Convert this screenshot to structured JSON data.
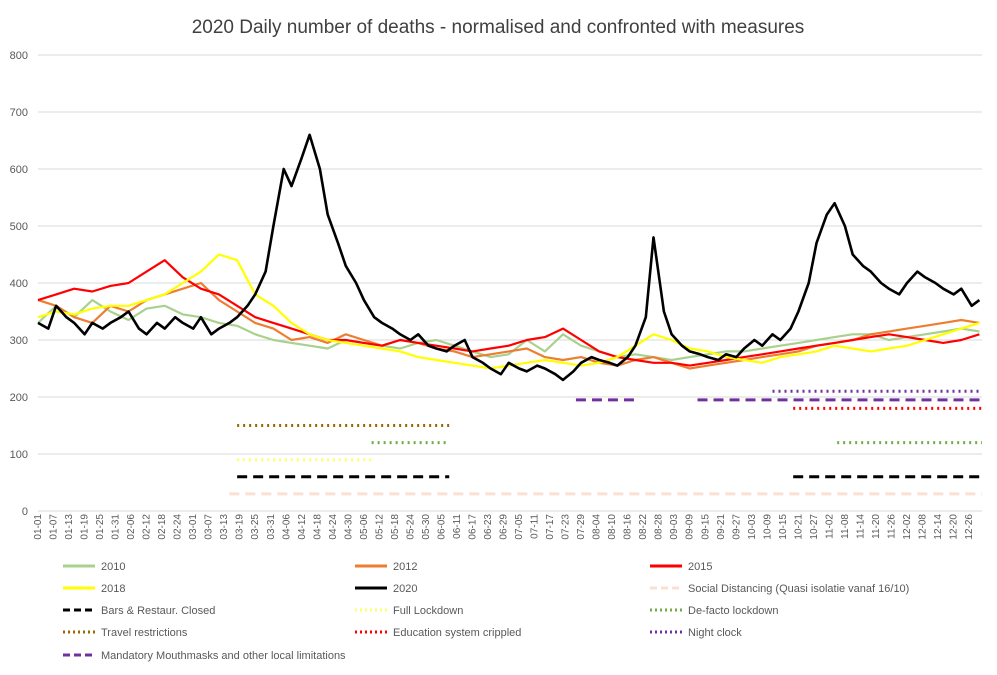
{
  "chart_data": {
    "type": "line",
    "title": "2020 Daily number of deaths - normalised and confronted with measures",
    "xlabel": "",
    "ylabel": "",
    "ylim": [
      0,
      800
    ],
    "yticks": [
      "0",
      "100",
      "200",
      "300",
      "400",
      "500",
      "600",
      "700",
      "800"
    ],
    "grid": "horizontal",
    "legend_position": "bottom",
    "xtick_labels": [
      "01-01",
      "01-07",
      "01-13",
      "01-19",
      "01-25",
      "01-31",
      "02-06",
      "02-12",
      "02-18",
      "02-24",
      "03-01",
      "03-07",
      "03-13",
      "03-19",
      "03-25",
      "03-31",
      "04-06",
      "04-12",
      "04-18",
      "04-24",
      "04-30",
      "05-06",
      "05-12",
      "05-18",
      "05-24",
      "05-30",
      "06-05",
      "06-11",
      "06-17",
      "06-23",
      "06-29",
      "07-05",
      "07-11",
      "07-17",
      "07-23",
      "07-29",
      "08-04",
      "08-10",
      "08-16",
      "08-22",
      "08-28",
      "09-03",
      "09-09",
      "09-15",
      "09-21",
      "09-27",
      "10-03",
      "10-09",
      "10-15",
      "10-21",
      "10-27",
      "11-02",
      "11-08",
      "11-14",
      "11-20",
      "11-26",
      "12-02",
      "12-08",
      "12-14",
      "12-20",
      "12-26"
    ],
    "series": [
      {
        "name": "2010",
        "color": "#a9d18e",
        "style": "solid",
        "day": [
          1,
          8,
          15,
          22,
          29,
          36,
          43,
          50,
          57,
          64,
          71,
          78,
          85,
          92,
          99,
          106,
          113,
          120,
          127,
          134,
          141,
          148,
          155,
          162,
          169,
          176,
          183,
          190,
          197,
          204,
          211,
          218,
          225,
          232,
          239,
          246,
          253,
          260,
          267,
          274,
          281,
          288,
          295,
          302,
          309,
          316,
          323,
          330,
          337,
          344,
          351,
          358,
          365
        ],
        "values": [
          330,
          360,
          340,
          370,
          350,
          335,
          355,
          360,
          345,
          340,
          330,
          325,
          310,
          300,
          295,
          290,
          285,
          300,
          295,
          290,
          285,
          295,
          300,
          290,
          280,
          270,
          275,
          300,
          280,
          310,
          290,
          280,
          270,
          275,
          270,
          265,
          270,
          275,
          280,
          280,
          285,
          290,
          295,
          300,
          305,
          310,
          310,
          300,
          305,
          310,
          315,
          320,
          315
        ]
      },
      {
        "name": "2012",
        "color": "#ed7d31",
        "style": "solid",
        "day": [
          1,
          8,
          15,
          22,
          29,
          36,
          43,
          50,
          57,
          64,
          71,
          78,
          85,
          92,
          99,
          106,
          113,
          120,
          127,
          134,
          141,
          148,
          155,
          162,
          169,
          176,
          183,
          190,
          197,
          204,
          211,
          218,
          225,
          232,
          239,
          246,
          253,
          260,
          267,
          274,
          281,
          288,
          295,
          302,
          309,
          316,
          323,
          330,
          337,
          344,
          351,
          358,
          365
        ],
        "values": [
          370,
          360,
          340,
          330,
          360,
          350,
          370,
          380,
          390,
          400,
          370,
          350,
          330,
          320,
          300,
          305,
          295,
          310,
          300,
          290,
          300,
          295,
          285,
          280,
          270,
          275,
          280,
          285,
          270,
          265,
          270,
          260,
          255,
          265,
          270,
          260,
          250,
          255,
          260,
          265,
          270,
          275,
          280,
          290,
          295,
          300,
          310,
          315,
          320,
          325,
          330,
          335,
          330
        ]
      },
      {
        "name": "2015",
        "color": "#ff0000",
        "style": "solid",
        "day": [
          1,
          8,
          15,
          22,
          29,
          36,
          43,
          50,
          57,
          64,
          71,
          78,
          85,
          92,
          99,
          106,
          113,
          120,
          127,
          134,
          141,
          148,
          155,
          162,
          169,
          176,
          183,
          190,
          197,
          204,
          211,
          218,
          225,
          232,
          239,
          246,
          253,
          260,
          267,
          274,
          281,
          288,
          295,
          302,
          309,
          316,
          323,
          330,
          337,
          344,
          351,
          358,
          365
        ],
        "values": [
          370,
          380,
          390,
          385,
          395,
          400,
          420,
          440,
          410,
          390,
          380,
          360,
          340,
          330,
          320,
          310,
          300,
          300,
          295,
          290,
          300,
          295,
          290,
          285,
          280,
          285,
          290,
          300,
          305,
          320,
          300,
          280,
          270,
          265,
          260,
          260,
          255,
          260,
          265,
          270,
          275,
          280,
          285,
          290,
          295,
          300,
          305,
          310,
          305,
          300,
          295,
          300,
          310
        ]
      },
      {
        "name": "2018",
        "color": "#ffff00",
        "style": "solid",
        "day": [
          1,
          8,
          15,
          22,
          29,
          36,
          43,
          50,
          57,
          64,
          71,
          78,
          85,
          92,
          99,
          106,
          113,
          120,
          127,
          134,
          141,
          148,
          155,
          162,
          169,
          176,
          183,
          190,
          197,
          204,
          211,
          218,
          225,
          232,
          239,
          246,
          253,
          260,
          267,
          274,
          281,
          288,
          295,
          302,
          309,
          316,
          323,
          330,
          337,
          344,
          351,
          358,
          365
        ],
        "values": [
          340,
          350,
          345,
          355,
          360,
          360,
          370,
          380,
          400,
          420,
          450,
          440,
          380,
          360,
          330,
          310,
          300,
          295,
          290,
          285,
          280,
          270,
          265,
          260,
          255,
          250,
          255,
          260,
          265,
          260,
          255,
          260,
          270,
          290,
          310,
          300,
          285,
          280,
          270,
          265,
          260,
          270,
          275,
          280,
          290,
          285,
          280,
          285,
          290,
          300,
          310,
          320,
          330
        ]
      },
      {
        "name": "2020",
        "color": "#000000",
        "style": "solid",
        "day": [
          1,
          5,
          8,
          12,
          15,
          19,
          22,
          26,
          29,
          33,
          36,
          40,
          43,
          47,
          50,
          54,
          57,
          61,
          64,
          68,
          71,
          75,
          78,
          82,
          85,
          89,
          92,
          96,
          99,
          103,
          106,
          110,
          113,
          117,
          120,
          124,
          127,
          131,
          134,
          138,
          141,
          145,
          148,
          152,
          155,
          159,
          162,
          166,
          169,
          173,
          176,
          180,
          183,
          187,
          190,
          194,
          197,
          201,
          204,
          208,
          211,
          215,
          218,
          222,
          225,
          229,
          232,
          236,
          239,
          243,
          246,
          250,
          253,
          257,
          260,
          264,
          267,
          271,
          274,
          278,
          281,
          285,
          288,
          292,
          295,
          299,
          302,
          306,
          309,
          313,
          316,
          320,
          323,
          327,
          330,
          334,
          337,
          341,
          344,
          348,
          351,
          355,
          358,
          362,
          365
        ],
        "values": [
          330,
          320,
          360,
          340,
          330,
          310,
          330,
          320,
          330,
          340,
          350,
          320,
          310,
          330,
          320,
          340,
          330,
          320,
          340,
          310,
          320,
          330,
          340,
          360,
          380,
          420,
          500,
          600,
          570,
          620,
          660,
          600,
          520,
          470,
          430,
          400,
          370,
          340,
          330,
          320,
          310,
          300,
          310,
          290,
          285,
          280,
          290,
          300,
          270,
          260,
          250,
          240,
          260,
          250,
          245,
          255,
          250,
          240,
          230,
          245,
          260,
          270,
          265,
          260,
          255,
          270,
          290,
          340,
          480,
          350,
          310,
          290,
          280,
          275,
          270,
          265,
          275,
          270,
          285,
          300,
          290,
          310,
          300,
          320,
          350,
          400,
          470,
          520,
          540,
          500,
          450,
          430,
          420,
          400,
          390,
          380,
          400,
          420,
          410,
          400,
          390,
          380,
          390,
          360,
          370
        ]
      }
    ],
    "measures": [
      {
        "name": "Social Distancing (Quasi isolatie vanaf 16/10)",
        "color": "#fbe0d2",
        "style": "dashed",
        "value": 30,
        "segments": [
          [
            75,
            366
          ]
        ]
      },
      {
        "name": "Bars & Restaur. Closed",
        "color": "#000000",
        "style": "dashed",
        "value": 60,
        "segments": [
          [
            78,
            160
          ],
          [
            293,
            366
          ]
        ]
      },
      {
        "name": "Full Lockdown",
        "color": "#ffff66",
        "style": "dotted",
        "value": 90,
        "segments": [
          [
            78,
            130
          ]
        ]
      },
      {
        "name": "De-facto lockdown",
        "color": "#70ad47",
        "style": "dotted",
        "value": 120,
        "segments": [
          [
            130,
            160
          ],
          [
            310,
            366
          ]
        ]
      },
      {
        "name": "Travel restrictions",
        "color": "#9c6500",
        "style": "dotted",
        "value": 150,
        "segments": [
          [
            78,
            160
          ]
        ]
      },
      {
        "name": "Education system crippled",
        "color": "#ff0000",
        "style": "dotted",
        "value": 180,
        "segments": [
          [
            293,
            366
          ]
        ]
      },
      {
        "name": "Night clock",
        "color": "#7030a0",
        "style": "dotted",
        "value": 210,
        "segments": [
          [
            285,
            366
          ]
        ]
      },
      {
        "name": "Mandatory Mouthmasks and other local limitations",
        "color": "#7030a0",
        "style": "dashed",
        "value": 195,
        "segments": [
          [
            209,
            233
          ],
          [
            256,
            366
          ]
        ]
      }
    ],
    "legend_order": [
      "2010",
      "2012",
      "2015",
      "2018",
      "2020",
      "Social Distancing (Quasi isolatie vanaf 16/10)",
      "Bars & Restaur. Closed",
      "Full Lockdown",
      "De-facto lockdown",
      "Travel restrictions",
      "Education system crippled",
      "Night clock",
      "Mandatory Mouthmasks and other local limitations"
    ]
  }
}
